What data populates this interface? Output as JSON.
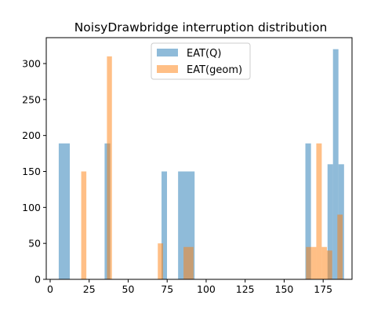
{
  "chart_data": {
    "type": "bar",
    "title": "NoisyDrawbridge interruption distribution",
    "xlabel": "",
    "ylabel": "",
    "xlim": [
      -2.5,
      193.5
    ],
    "ylim": [
      0,
      336
    ],
    "xticks": [
      0,
      25,
      50,
      75,
      100,
      125,
      150,
      175
    ],
    "yticks": [
      0,
      50,
      100,
      150,
      200,
      250,
      300
    ],
    "grid": false,
    "legend_position": "top-center",
    "series": [
      {
        "name": "EAT(Q)",
        "color": "#1f77b4",
        "opacity": 0.5,
        "bins": [
          {
            "x0": 5.5,
            "x1": 12.6,
            "count": 189
          },
          {
            "x0": 34.9,
            "x1": 38.5,
            "count": 189
          },
          {
            "x0": 71.4,
            "x1": 74.9,
            "count": 150
          },
          {
            "x0": 82.0,
            "x1": 92.6,
            "count": 150
          },
          {
            "x0": 163.6,
            "x1": 167.2,
            "count": 189
          },
          {
            "x0": 177.8,
            "x1": 181.3,
            "count": 160
          },
          {
            "x0": 181.3,
            "x1": 184.8,
            "count": 320
          },
          {
            "x0": 184.8,
            "x1": 188.4,
            "count": 160
          }
        ]
      },
      {
        "name": "EAT(geom)",
        "color": "#ff7f0e",
        "opacity": 0.5,
        "bins": [
          {
            "x0": 19.9,
            "x1": 23.2,
            "count": 150
          },
          {
            "x0": 36.4,
            "x1": 39.6,
            "count": 310
          },
          {
            "x0": 69.0,
            "x1": 72.4,
            "count": 50
          },
          {
            "x0": 85.5,
            "x1": 91.9,
            "count": 45
          },
          {
            "x0": 164.0,
            "x1": 167.4,
            "count": 45
          },
          {
            "x0": 167.4,
            "x1": 170.6,
            "count": 45
          },
          {
            "x0": 170.6,
            "x1": 174.1,
            "count": 189
          },
          {
            "x0": 174.1,
            "x1": 177.4,
            "count": 45
          },
          {
            "x0": 177.4,
            "x1": 180.8,
            "count": 40
          },
          {
            "x0": 180.8,
            "x1": 184.1,
            "count": 0
          },
          {
            "x0": 184.1,
            "x1": 187.5,
            "count": 90
          }
        ]
      }
    ]
  }
}
